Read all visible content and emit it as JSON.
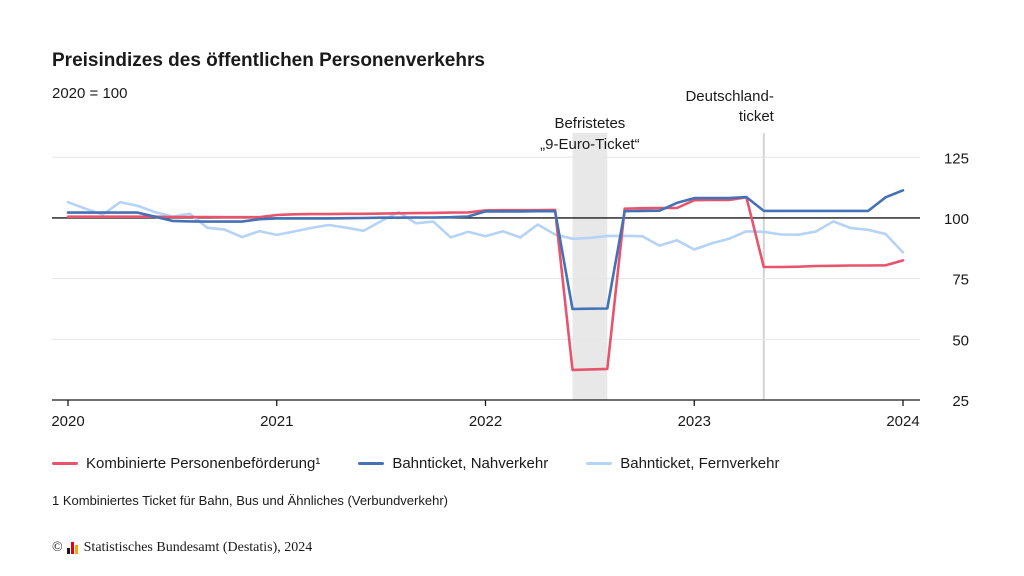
{
  "chart_data": {
    "type": "line",
    "title": "Preisindizes des öffentlichen Personenverkehrs",
    "subtitle": "2020 = 100",
    "xlabel": "",
    "ylabel": "",
    "x_tick_labels": [
      "2020",
      "2021",
      "2022",
      "2023",
      "2024"
    ],
    "x_range": [
      "2020-01",
      "2024-01"
    ],
    "ylim": [
      25,
      135
    ],
    "y_ticks": [
      25,
      50,
      75,
      100,
      125
    ],
    "reference_line": 100,
    "grid": "horizontal",
    "legend_position": "bottom",
    "months": [
      "2020-01",
      "2020-02",
      "2020-03",
      "2020-04",
      "2020-05",
      "2020-06",
      "2020-07",
      "2020-08",
      "2020-09",
      "2020-10",
      "2020-11",
      "2020-12",
      "2021-01",
      "2021-02",
      "2021-03",
      "2021-04",
      "2021-05",
      "2021-06",
      "2021-07",
      "2021-08",
      "2021-09",
      "2021-10",
      "2021-11",
      "2021-12",
      "2022-01",
      "2022-02",
      "2022-03",
      "2022-04",
      "2022-05",
      "2022-06",
      "2022-07",
      "2022-08",
      "2022-09",
      "2022-10",
      "2022-11",
      "2022-12",
      "2023-01",
      "2023-02",
      "2023-03",
      "2023-04",
      "2023-05",
      "2023-06",
      "2023-07",
      "2023-08",
      "2023-09",
      "2023-10",
      "2023-11",
      "2023-12",
      "2024-01"
    ],
    "series": [
      {
        "name": "Kombinierte Personenbeförderung¹",
        "color": "#e8546c",
        "values": [
          100.5,
          100.5,
          100.5,
          100.5,
          100.5,
          100.5,
          100.4,
          100.4,
          100.4,
          100.3,
          100.3,
          100.3,
          101.2,
          101.5,
          101.6,
          101.6,
          101.7,
          101.7,
          101.8,
          101.9,
          102.0,
          102.1,
          102.2,
          102.3,
          103.1,
          103.2,
          103.2,
          103.2,
          103.3,
          37.4,
          37.6,
          37.8,
          103.8,
          104.0,
          104.1,
          104.1,
          107.3,
          107.4,
          107.4,
          108.5,
          79.8,
          79.8,
          79.9,
          80.2,
          80.3,
          80.4,
          80.4,
          80.5,
          82.5
        ]
      },
      {
        "name": "Bahnticket, Nahverkehr",
        "color": "#4472b4",
        "values": [
          102.2,
          102.2,
          102.2,
          102.2,
          102.2,
          100.5,
          98.8,
          98.6,
          98.5,
          98.5,
          98.5,
          99.5,
          99.8,
          99.8,
          99.8,
          99.8,
          99.9,
          100.0,
          100.1,
          100.1,
          100.2,
          100.2,
          100.3,
          100.6,
          102.7,
          102.7,
          102.7,
          102.8,
          102.8,
          62.5,
          62.6,
          62.7,
          102.8,
          102.9,
          103.0,
          106.2,
          108.2,
          108.2,
          108.2,
          108.6,
          102.9,
          102.9,
          102.9,
          102.9,
          102.9,
          102.9,
          102.9,
          108.5,
          111.4
        ]
      },
      {
        "name": "Bahnticket, Fernverkehr",
        "color": "#b5d3f5",
        "values": [
          106.5,
          103.8,
          101.4,
          106.5,
          105.0,
          102.4,
          100.6,
          101.7,
          96.0,
          95.2,
          92.1,
          94.6,
          93.0,
          94.4,
          95.9,
          97.1,
          96.0,
          94.7,
          98.7,
          102.4,
          97.8,
          98.5,
          92.0,
          94.3,
          92.5,
          94.5,
          92.0,
          97.3,
          93.2,
          91.4,
          91.8,
          92.6,
          92.6,
          92.5,
          88.6,
          90.8,
          87.0,
          89.5,
          91.4,
          94.5,
          94.3,
          93.2,
          93.1,
          94.4,
          98.6,
          95.8,
          95.1,
          93.4,
          85.8
        ]
      }
    ],
    "annotations": [
      {
        "lines": [
          "Befristetes",
          "„9-Euro-Ticket“"
        ],
        "kind": "band",
        "from": "2022-06",
        "to": "2022-08"
      },
      {
        "lines": [
          "Deutschland-",
          "ticket"
        ],
        "kind": "vline",
        "at": "2023-05"
      }
    ]
  },
  "footnote": "1 Kombiniertes Ticket für Bahn, Bus und Ähnliches (Verbundverkehr)",
  "source": {
    "copyright_symbol": "©",
    "text": "Statistisches Bundesamt (Destatis), 2024",
    "logo_colors": [
      "#1a1a1a",
      "#e2001a",
      "#f5a800"
    ]
  },
  "colors": {
    "grid": "#e6e6e6",
    "reference": "#1a1a1a",
    "band": "#e8e8e8",
    "axis": "#1a1a1a"
  }
}
